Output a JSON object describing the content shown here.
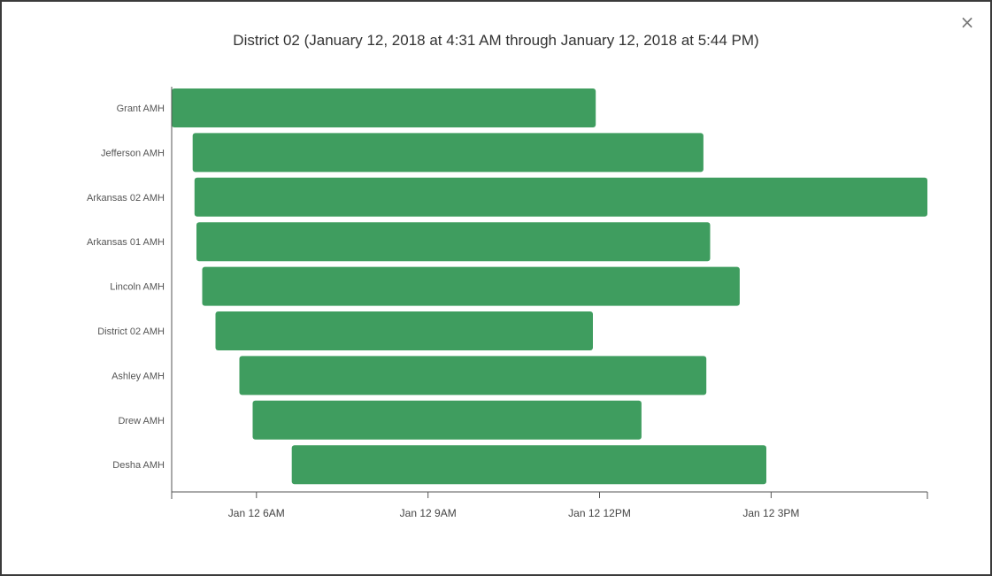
{
  "close_label": "×",
  "chart_data": {
    "type": "bar",
    "orientation": "horizontal-range",
    "title": "District 02 (January 12, 2018 at 4:31 AM through January 12, 2018 at 5:44 PM)",
    "xlabel": "",
    "ylabel": "",
    "bar_color": "#3f9d5f",
    "x_range": [
      "2018-01-12T04:31",
      "2018-01-12T17:44"
    ],
    "ticks": [
      {
        "value": "2018-01-12T06:00",
        "label": "Jan 12 6AM"
      },
      {
        "value": "2018-01-12T09:00",
        "label": "Jan 12 9AM"
      },
      {
        "value": "2018-01-12T12:00",
        "label": "Jan 12 12PM"
      },
      {
        "value": "2018-01-12T15:00",
        "label": "Jan 12 3PM"
      }
    ],
    "series": [
      {
        "category": "Grant AMH",
        "start": "2018-01-12T04:31",
        "end": "2018-01-12T11:56"
      },
      {
        "category": "Jefferson AMH",
        "start": "2018-01-12T04:53",
        "end": "2018-01-12T13:49"
      },
      {
        "category": "Arkansas 02 AMH",
        "start": "2018-01-12T04:55",
        "end": "2018-01-12T17:44"
      },
      {
        "category": "Arkansas 01 AMH",
        "start": "2018-01-12T04:57",
        "end": "2018-01-12T13:56"
      },
      {
        "category": "Lincoln AMH",
        "start": "2018-01-12T05:03",
        "end": "2018-01-12T14:27"
      },
      {
        "category": "District 02 AMH",
        "start": "2018-01-12T05:17",
        "end": "2018-01-12T11:53"
      },
      {
        "category": "Ashley AMH",
        "start": "2018-01-12T05:42",
        "end": "2018-01-12T13:52"
      },
      {
        "category": "Drew AMH",
        "start": "2018-01-12T05:56",
        "end": "2018-01-12T12:44"
      },
      {
        "category": "Desha AMH",
        "start": "2018-01-12T06:37",
        "end": "2018-01-12T14:55"
      }
    ]
  }
}
